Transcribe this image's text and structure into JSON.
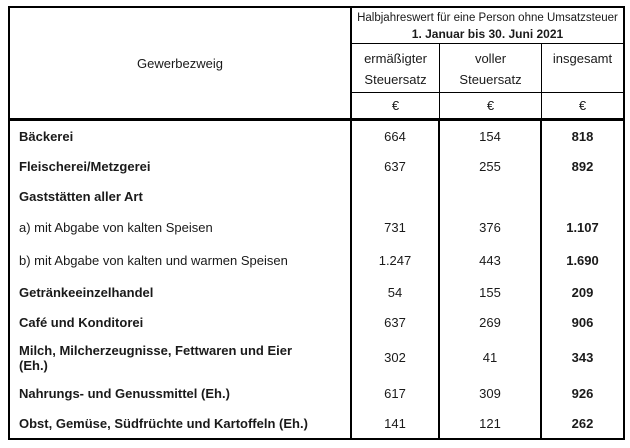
{
  "table": {
    "branch_column_header": "Gewerbezweig",
    "header": {
      "title": "Halbjahreswert für eine Person ohne Umsatzsteuer",
      "period": "1. Januar bis 30. Juni 2021",
      "columns": [
        {
          "line1": "ermäßigter",
          "line2": "Steuersatz"
        },
        {
          "line1": "voller",
          "line2": "Steuersatz"
        },
        {
          "line1": "insgesamt",
          "line2": ""
        }
      ],
      "currency": "€"
    },
    "rows": [
      {
        "label": "Bäckerei",
        "category": true,
        "reduced": "664",
        "full": "154",
        "total": "818"
      },
      {
        "label": "Fleischerei/Metzgerei",
        "category": true,
        "reduced": "637",
        "full": "255",
        "total": "892"
      },
      {
        "label": "Gaststätten aller Art",
        "category": true,
        "reduced": "",
        "full": "",
        "total": ""
      },
      {
        "label": "a) mit Abgabe von kalten Speisen",
        "category": false,
        "reduced": "731",
        "full": "376",
        "total": "1.107"
      },
      {
        "label": "b) mit Abgabe von kalten und warmen Speisen",
        "category": false,
        "reduced": "1.247",
        "full": "443",
        "total": "1.690"
      },
      {
        "label": "Getränkeeinzelhandel",
        "category": true,
        "reduced": "54",
        "full": "155",
        "total": "209"
      },
      {
        "label": "Café und Konditorei",
        "category": true,
        "reduced": "637",
        "full": "269",
        "total": "906"
      },
      {
        "label": "Milch, Milcherzeugnisse, Fettwaren und Eier\n(Eh.)",
        "category": true,
        "reduced": "302",
        "full": "41",
        "total": "343"
      },
      {
        "label": "Nahrungs- und Genussmittel (Eh.)",
        "category": true,
        "reduced": "617",
        "full": "309",
        "total": "926"
      },
      {
        "label": "Obst, Gemüse, Südfrüchte und Kartoffeln (Eh.)",
        "category": true,
        "reduced": "141",
        "full": "121",
        "total": "262"
      }
    ]
  }
}
